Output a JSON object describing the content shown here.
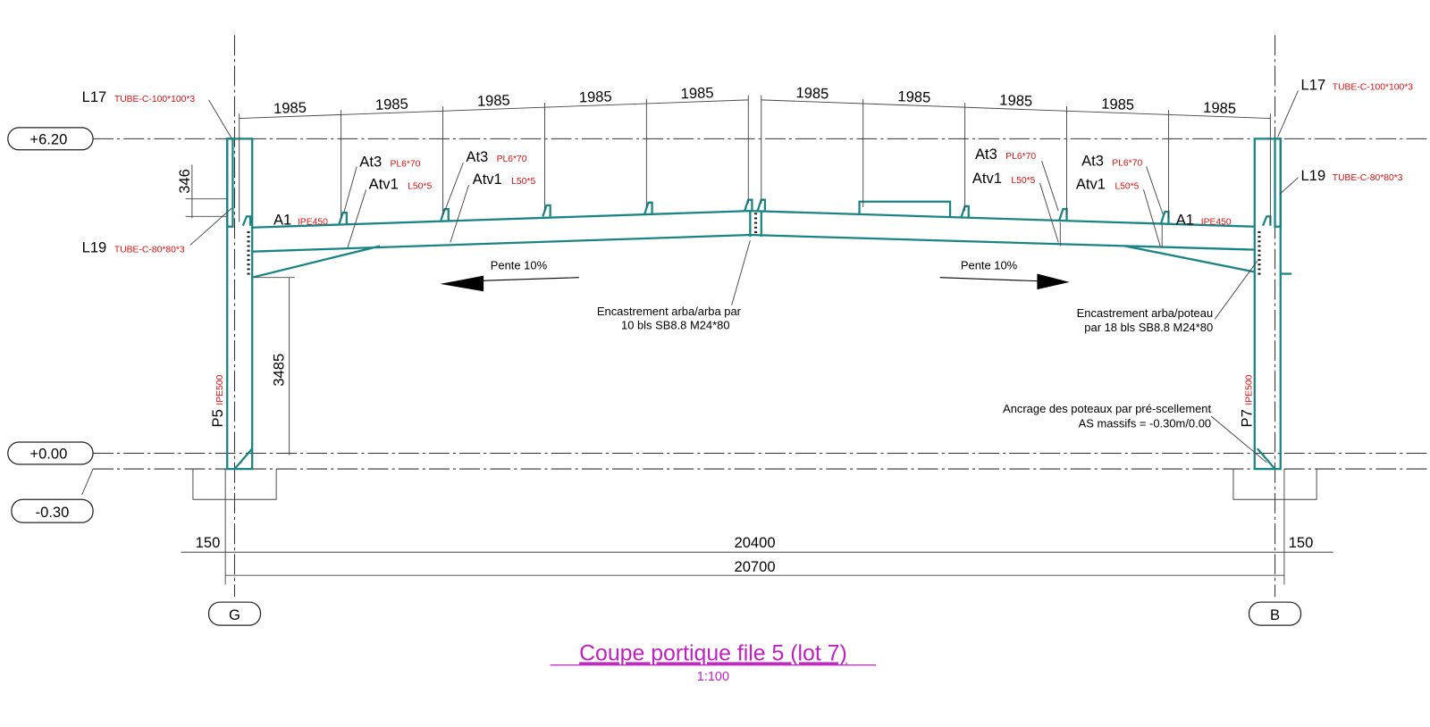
{
  "title": "Coupe portique file 5 (lot 7)",
  "scale": "1:100",
  "levels": [
    "+6.20",
    "+0.00",
    "-0.30"
  ],
  "grid_axes": [
    "G",
    "B"
  ],
  "dimensions": {
    "spacing": [
      "1985",
      "1985",
      "1985",
      "1985",
      "1985",
      "1985",
      "1985",
      "1985",
      "1985",
      "1985"
    ],
    "haunch_height": "346",
    "column_height": "3485",
    "overall": [
      "150",
      "20400",
      "20700",
      "150"
    ]
  },
  "members": [
    {
      "mark": "L17",
      "section": "TUBE-C-100*100*3"
    },
    {
      "mark": "L19",
      "section": "TUBE-C-80*80*3"
    },
    {
      "mark": "A1",
      "section": "IPE450"
    },
    {
      "mark": "At3",
      "section": "PL6*70"
    },
    {
      "mark": "Atv1",
      "section": "L50*5"
    },
    {
      "mark": "At3",
      "section": "PL6*70"
    },
    {
      "mark": "Atv1",
      "section": "L50*5"
    },
    {
      "mark": "At3",
      "section": "PL6*70"
    },
    {
      "mark": "Atv1",
      "section": "L50*5"
    },
    {
      "mark": "At3",
      "section": "PL6*70"
    },
    {
      "mark": "Atv1",
      "section": "L50*5"
    },
    {
      "mark": "A1",
      "section": "IPE450"
    },
    {
      "mark": "L17",
      "section": "TUBE-C-100*100*3"
    },
    {
      "mark": "L19",
      "section": "TUBE-C-80*80*3"
    },
    {
      "mark": "P5",
      "section": "IPE500"
    },
    {
      "mark": "P7",
      "section": "IPE500"
    }
  ],
  "notes": {
    "slope_left": "Pente 10%",
    "slope_right": "Pente 10%",
    "ridge_connection": [
      "Encastrement arba/arba par",
      "10 bls SB8.8 M24*80"
    ],
    "eave_connection": [
      "Encastrement arba/poteau",
      "par 18 bls SB8.8 M24*80"
    ],
    "anchorage": [
      "Ancrage des poteaux par pré-scellement",
      "AS massifs = -0.30m/0.00"
    ]
  }
}
